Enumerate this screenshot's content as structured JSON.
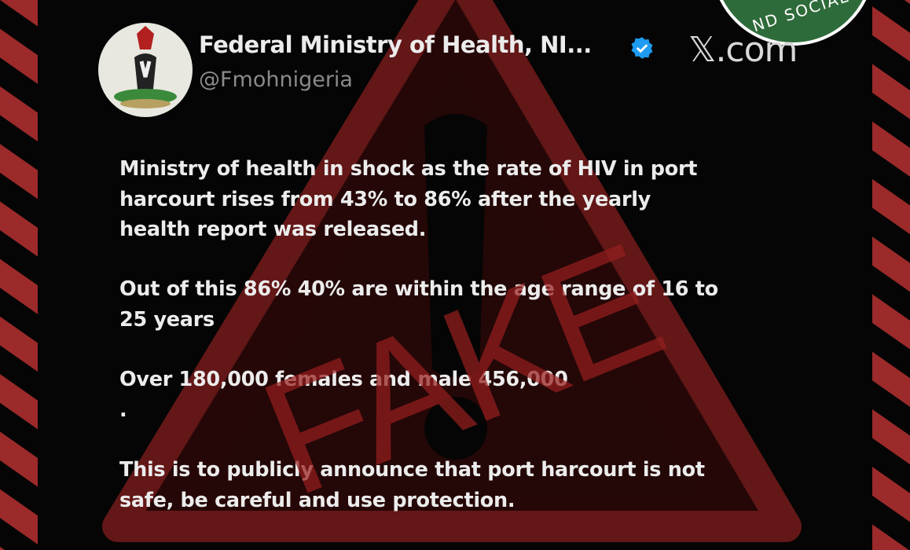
{
  "tweet": {
    "account_name": "Federal Ministry of Health, NI...",
    "handle": "@Fmohnigeria",
    "verified": true,
    "site": "𝕏.com",
    "paragraphs": [
      [
        "Ministry of health in shock as the rate of HIV in port",
        "harcourt rises from 43% to 86% after the yearly",
        "health report was released."
      ],
      [
        "Out of this 86% 40% are within the age range of 16 to",
        "25 years"
      ],
      [
        "Over 180,000 females and male 456,000",
        "."
      ],
      [
        "This is to publicly announce that port harcourt is not",
        "safe, be careful and use protection."
      ]
    ]
  },
  "overlay": {
    "stamp": "FAKE",
    "badge_text": "ND SOCIAL",
    "icon": "warning-triangle-icon"
  },
  "colors": {
    "stamp_red": "#961e1e",
    "stripe_red": "#9c2a2a",
    "badge_green": "#2e6b3a",
    "verified_blue": "#1d9bf0"
  }
}
